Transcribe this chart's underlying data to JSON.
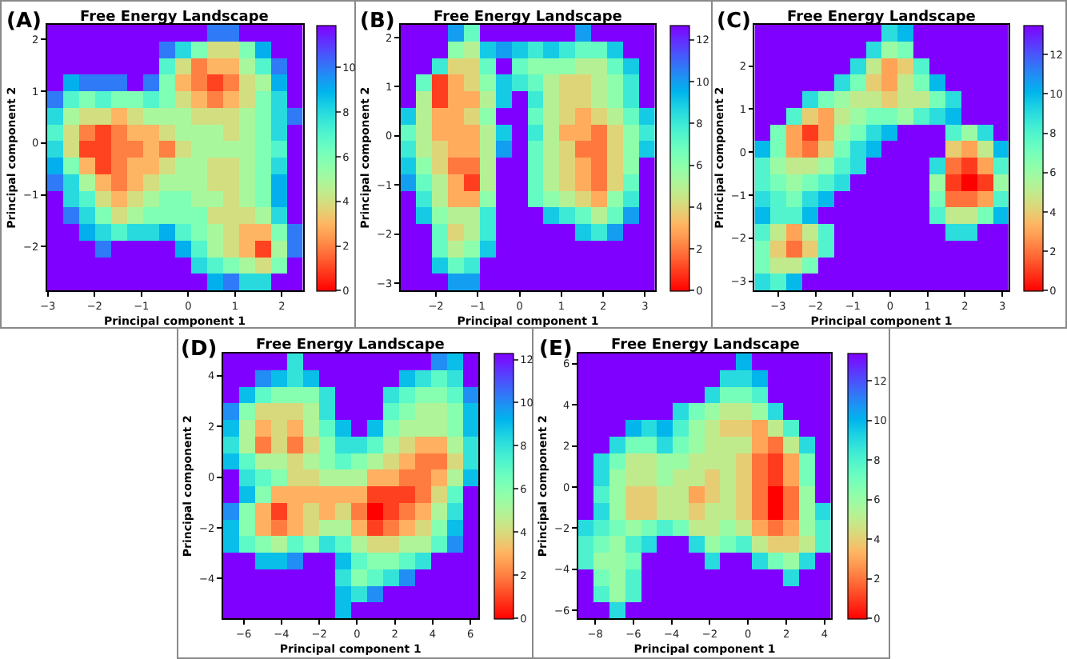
{
  "chart_data": [
    {
      "type": "heatmap",
      "title": "Free Energy Landscape",
      "xlabel": "Principal component 1",
      "ylabel": "Principal component 2",
      "annotations": [
        "(A)"
      ],
      "xlim": [
        -3.02,
        2.45
      ],
      "ylim": [
        -2.85,
        2.28
      ],
      "xticks": [
        -3,
        -2,
        -1,
        0,
        1,
        2
      ],
      "yticks": [
        -2,
        -1,
        0,
        1,
        2
      ],
      "clim": [
        0,
        11.9
      ],
      "cticks": [
        0,
        2,
        4,
        6,
        8,
        10
      ],
      "cells": [
        [
          11.9,
          11.9,
          11.9,
          11.9,
          11.9,
          11.9,
          11.9,
          11.9,
          11.9,
          11.9,
          10,
          10,
          11.9,
          11.9,
          11.9,
          11.9
        ],
        [
          11.9,
          11.9,
          11.9,
          11.9,
          11.9,
          11.9,
          11.9,
          10,
          8,
          6,
          4,
          4,
          6,
          9,
          11.9,
          11.9
        ],
        [
          11.9,
          11.9,
          11.9,
          11.9,
          11.9,
          11.9,
          11.9,
          7,
          4,
          2,
          3,
          3,
          5,
          7,
          10,
          11.9
        ],
        [
          11.9,
          9,
          10,
          10,
          10,
          11.9,
          10,
          6,
          3,
          2,
          1,
          2,
          4,
          5,
          9,
          11.9
        ],
        [
          10,
          7,
          6,
          7,
          6,
          6,
          7,
          6,
          4,
          3,
          2,
          3,
          4,
          6,
          8,
          11.9
        ],
        [
          8,
          5,
          4,
          4,
          3,
          4,
          5,
          5,
          5,
          4,
          4,
          4,
          5,
          6,
          8,
          10
        ],
        [
          7,
          4,
          2,
          1,
          2,
          3,
          3,
          4,
          5,
          5,
          5,
          4,
          5,
          6,
          8,
          11.9
        ],
        [
          8,
          4,
          1,
          1,
          2,
          2,
          3,
          2,
          4,
          5,
          5,
          5,
          5,
          6,
          7,
          11.9
        ],
        [
          9,
          6,
          3,
          1,
          2,
          3,
          3,
          4,
          5,
          5,
          4,
          4,
          5,
          6,
          8,
          11.9
        ],
        [
          10,
          8,
          5,
          3,
          2,
          3,
          4,
          5,
          5,
          5,
          4,
          4,
          5,
          6,
          9,
          11.9
        ],
        [
          11.9,
          8,
          7,
          4,
          3,
          4,
          5,
          6,
          6,
          5,
          5,
          4,
          5,
          6,
          9,
          11.9
        ],
        [
          11.9,
          10,
          8,
          6,
          4,
          5,
          6,
          6,
          6,
          6,
          4,
          4,
          4,
          5,
          8,
          11.9
        ],
        [
          11.9,
          11.9,
          9,
          8,
          7,
          8,
          8,
          9,
          7,
          6,
          5,
          4,
          3,
          3,
          6,
          10
        ],
        [
          11.9,
          11.9,
          11.9,
          10,
          11.9,
          11.9,
          11.9,
          11.9,
          9,
          7,
          5,
          4,
          3,
          1,
          5,
          10
        ],
        [
          11.9,
          11.9,
          11.9,
          11.9,
          11.9,
          11.9,
          11.9,
          11.9,
          11.9,
          8,
          7,
          6,
          5,
          4,
          6,
          11.9
        ],
        [
          11.9,
          11.9,
          11.9,
          11.9,
          11.9,
          11.9,
          11.9,
          11.9,
          11.9,
          11.9,
          9,
          10,
          8,
          8,
          11.9,
          11.9
        ]
      ]
    },
    {
      "type": "heatmap",
      "title": "Free Energy Landscape",
      "xlabel": "Principal component 1",
      "ylabel": "Principal component 2",
      "annotations": [
        "(B)"
      ],
      "xlim": [
        -2.85,
        3.25
      ],
      "ylim": [
        -3.15,
        2.26
      ],
      "xticks": [
        -2,
        -1,
        0,
        1,
        2,
        3
      ],
      "yticks": [
        -3,
        -2,
        -1,
        0,
        1,
        2
      ],
      "clim": [
        0,
        12.7
      ],
      "cticks": [
        0,
        2,
        4,
        6,
        8,
        10,
        12
      ],
      "cells": [
        [
          12.7,
          12.7,
          12.7,
          10,
          7,
          12.7,
          12.7,
          12.7,
          12.7,
          12.7,
          12.7,
          10,
          12.7,
          12.7,
          12.7,
          12.7
        ],
        [
          12.7,
          12.7,
          12.7,
          6,
          5,
          9,
          10,
          9,
          8,
          9,
          8,
          7,
          7,
          9,
          12.7,
          12.7
        ],
        [
          12.7,
          12.7,
          8,
          4,
          4,
          7,
          12.7,
          7,
          6,
          6,
          6,
          5,
          5,
          7,
          9,
          12.7
        ],
        [
          12.7,
          7,
          1,
          3,
          4,
          6,
          9,
          8,
          7,
          5,
          4,
          4,
          5,
          6,
          8,
          12.7
        ],
        [
          12.7,
          5,
          1,
          3,
          3,
          5,
          9,
          12.7,
          8,
          5,
          4,
          4,
          5,
          6,
          8,
          12.7
        ],
        [
          9,
          5,
          3,
          3,
          4,
          6,
          12.7,
          12.7,
          7,
          5,
          4,
          3,
          4,
          5,
          7,
          9
        ],
        [
          7,
          5,
          3,
          3,
          3,
          5,
          9,
          12.7,
          8,
          5,
          3,
          3,
          2,
          4,
          6,
          8
        ],
        [
          8,
          5,
          4,
          3,
          3,
          5,
          10,
          12.7,
          7,
          5,
          4,
          2,
          2,
          4,
          6,
          9
        ],
        [
          9,
          6,
          4,
          2,
          2,
          5,
          12.7,
          12.7,
          7,
          5,
          4,
          3,
          2,
          4,
          6,
          12.7
        ],
        [
          10,
          7,
          5,
          3,
          1,
          5,
          12.7,
          12.7,
          7,
          5,
          4,
          3,
          2,
          4,
          7,
          12.7
        ],
        [
          12.7,
          8,
          5,
          3,
          3,
          6,
          12.7,
          12.7,
          7,
          6,
          5,
          4,
          3,
          6,
          8,
          12.7
        ],
        [
          12.7,
          9,
          6,
          5,
          5,
          8,
          12.7,
          12.7,
          12.7,
          9,
          8,
          7,
          5,
          7,
          10,
          12.7
        ],
        [
          12.7,
          12.7,
          7,
          4,
          5,
          8,
          12.7,
          12.7,
          12.7,
          12.7,
          12.7,
          9,
          8,
          10,
          12.7,
          12.7
        ],
        [
          12.7,
          12.7,
          7,
          5,
          6,
          9,
          12.7,
          12.7,
          12.7,
          12.7,
          12.7,
          12.7,
          12.7,
          12.7,
          12.7,
          12.7
        ],
        [
          12.7,
          12.7,
          9,
          7,
          8,
          12.7,
          12.7,
          12.7,
          12.7,
          12.7,
          12.7,
          12.7,
          12.7,
          12.7,
          12.7,
          12.7
        ],
        [
          12.7,
          12.7,
          12.7,
          10,
          10,
          12.7,
          12.7,
          12.7,
          12.7,
          12.7,
          12.7,
          12.7,
          12.7,
          12.7,
          12.7,
          12.7
        ]
      ]
    },
    {
      "type": "heatmap",
      "title": "Free Energy Landscape",
      "xlabel": "Principal component 1",
      "ylabel": "Principal component 2",
      "annotations": [
        "(C)"
      ],
      "xlim": [
        -3.63,
        3.16
      ],
      "ylim": [
        -3.22,
        2.96
      ],
      "xticks": [
        -3,
        -2,
        -1,
        0,
        1,
        2,
        3
      ],
      "yticks": [
        -3,
        -2,
        -1,
        0,
        1,
        2
      ],
      "clim": [
        0,
        13.5
      ],
      "cticks": [
        0,
        2,
        4,
        6,
        8,
        10,
        12
      ],
      "cells": [
        [
          13.5,
          13.5,
          13.5,
          13.5,
          13.5,
          13.5,
          13.5,
          13.5,
          9,
          10,
          13.5,
          13.5,
          13.5,
          13.5,
          13.5,
          13.5
        ],
        [
          13.5,
          13.5,
          13.5,
          13.5,
          13.5,
          13.5,
          13.5,
          9,
          6,
          7,
          13.5,
          13.5,
          13.5,
          13.5,
          13.5,
          13.5
        ],
        [
          13.5,
          13.5,
          13.5,
          13.5,
          13.5,
          13.5,
          9,
          5,
          3,
          4,
          8,
          13.5,
          13.5,
          13.5,
          13.5,
          13.5
        ],
        [
          13.5,
          13.5,
          13.5,
          13.5,
          13.5,
          9,
          7,
          4,
          3,
          5,
          7,
          10,
          13.5,
          13.5,
          13.5,
          13.5
        ],
        [
          13.5,
          13.5,
          13.5,
          9,
          7,
          6,
          5,
          5,
          4,
          5,
          5,
          7,
          9,
          13.5,
          13.5,
          13.5
        ],
        [
          13.5,
          13.5,
          8,
          4,
          3,
          5,
          6,
          7,
          7,
          6,
          8,
          9,
          10,
          13.5,
          13.5,
          13.5
        ],
        [
          13.5,
          7,
          3,
          1,
          3,
          6,
          7,
          9,
          10,
          13.5,
          13.5,
          13.5,
          8,
          6,
          9,
          13.5
        ],
        [
          10,
          7,
          3,
          2,
          4,
          7,
          9,
          10,
          13.5,
          13.5,
          13.5,
          13.5,
          4,
          3,
          5,
          10
        ],
        [
          8,
          6,
          5,
          5,
          6,
          8,
          9,
          13.5,
          13.5,
          13.5,
          13.5,
          9,
          2,
          1,
          3,
          8
        ],
        [
          8,
          7,
          6,
          7,
          8,
          9,
          13.5,
          13.5,
          13.5,
          13.5,
          13.5,
          6,
          1,
          0,
          1,
          6
        ],
        [
          9,
          8,
          7,
          9,
          10,
          13.5,
          13.5,
          13.5,
          13.5,
          13.5,
          13.5,
          7,
          2,
          2,
          3,
          8
        ],
        [
          10,
          8,
          8,
          10,
          13.5,
          13.5,
          13.5,
          13.5,
          13.5,
          13.5,
          13.5,
          8,
          5,
          5,
          7,
          10
        ],
        [
          8,
          5,
          3,
          5,
          8,
          13.5,
          13.5,
          13.5,
          13.5,
          13.5,
          13.5,
          13.5,
          9,
          9,
          13.5,
          13.5
        ],
        [
          7,
          4,
          2,
          4,
          8,
          13.5,
          13.5,
          13.5,
          13.5,
          13.5,
          13.5,
          13.5,
          13.5,
          13.5,
          13.5,
          13.5
        ],
        [
          7,
          5,
          5,
          7,
          13.5,
          13.5,
          13.5,
          13.5,
          13.5,
          13.5,
          13.5,
          13.5,
          13.5,
          13.5,
          13.5,
          13.5
        ],
        [
          9,
          8,
          10,
          13.5,
          13.5,
          13.5,
          13.5,
          13.5,
          13.5,
          13.5,
          13.5,
          13.5,
          13.5,
          13.5,
          13.5,
          13.5
        ]
      ]
    },
    {
      "type": "heatmap",
      "title": "Free Energy Landscape",
      "xlabel": "Principal component 1",
      "ylabel": "Principal component 2",
      "annotations": [
        "(D)"
      ],
      "xlim": [
        -7.1,
        6.42
      ],
      "ylim": [
        -5.58,
        4.88
      ],
      "xticks": [
        -6,
        -4,
        -2,
        0,
        2,
        4,
        6
      ],
      "yticks": [
        -4,
        -2,
        0,
        2,
        4
      ],
      "clim": [
        0,
        12.3
      ],
      "cticks": [
        0,
        2,
        4,
        6,
        8,
        10,
        12
      ],
      "cells": [
        [
          12.3,
          12.3,
          12.3,
          12.3,
          8,
          12.3,
          12.3,
          12.3,
          12.3,
          12.3,
          12.3,
          12.3,
          12.3,
          10,
          9,
          12.3
        ],
        [
          12.3,
          12.3,
          10,
          9,
          8,
          9,
          12.3,
          12.3,
          12.3,
          12.3,
          12.3,
          9,
          8,
          7,
          8,
          12.3
        ],
        [
          12.3,
          9,
          7,
          6,
          6,
          6,
          8,
          12.3,
          12.3,
          12.3,
          8,
          7,
          6,
          6,
          7,
          10
        ],
        [
          10,
          6,
          4,
          4,
          4,
          5,
          8,
          12.3,
          12.3,
          12.3,
          7,
          6,
          5,
          5,
          6,
          9
        ],
        [
          9,
          5,
          3,
          4,
          3,
          5,
          7,
          9,
          12.3,
          9,
          6,
          5,
          5,
          5,
          6,
          9
        ],
        [
          8,
          5,
          2,
          4,
          2,
          4,
          6,
          8,
          8,
          7,
          5,
          4,
          3,
          3,
          5,
          8
        ],
        [
          9,
          7,
          5,
          5,
          4,
          5,
          6,
          7,
          6,
          5,
          4,
          3,
          2,
          2,
          4,
          8
        ],
        [
          12.3,
          8,
          7,
          6,
          4,
          4,
          5,
          5,
          5,
          3,
          3,
          2,
          2,
          3,
          5,
          9
        ],
        [
          12.3,
          9,
          6,
          3,
          3,
          3,
          3,
          3,
          3,
          1,
          1,
          1,
          2,
          4,
          7,
          12.3
        ],
        [
          10,
          6,
          3,
          1,
          3,
          4,
          3,
          4,
          2,
          0,
          1,
          2,
          3,
          5,
          8,
          12.3
        ],
        [
          9,
          6,
          3,
          2,
          3,
          4,
          5,
          5,
          3,
          1,
          2,
          3,
          4,
          6,
          9,
          12.3
        ],
        [
          9,
          7,
          6,
          5,
          7,
          6,
          8,
          7,
          5,
          4,
          4,
          5,
          5,
          7,
          10,
          12.3
        ],
        [
          12.3,
          12.3,
          9,
          9,
          10,
          12.3,
          12.3,
          9,
          7,
          6,
          6,
          7,
          8,
          12.3,
          12.3,
          12.3
        ],
        [
          12.3,
          12.3,
          12.3,
          12.3,
          12.3,
          12.3,
          12.3,
          8,
          6,
          7,
          8,
          10,
          12.3,
          12.3,
          12.3,
          12.3
        ],
        [
          12.3,
          12.3,
          12.3,
          12.3,
          12.3,
          12.3,
          12.3,
          9,
          8,
          10,
          12.3,
          12.3,
          12.3,
          12.3,
          12.3,
          12.3
        ],
        [
          12.3,
          12.3,
          12.3,
          12.3,
          12.3,
          12.3,
          12.3,
          9,
          12.3,
          12.3,
          12.3,
          12.3,
          12.3,
          12.3,
          12.3,
          12.3
        ]
      ]
    },
    {
      "type": "heatmap",
      "title": "Free Energy Landscape",
      "xlabel": "Principal component 1",
      "ylabel": "Principal component 2",
      "annotations": [
        "(E)"
      ],
      "xlim": [
        -8.9,
        4.36
      ],
      "ylim": [
        -6.4,
        6.5
      ],
      "xticks": [
        -8,
        -6,
        -4,
        -2,
        0,
        2,
        4
      ],
      "yticks": [
        -6,
        -4,
        -2,
        0,
        2,
        4,
        6
      ],
      "clim": [
        0,
        13.4
      ],
      "cticks": [
        0,
        2,
        4,
        6,
        8,
        10,
        12
      ],
      "cells": [
        [
          13.4,
          13.4,
          13.4,
          13.4,
          13.4,
          13.4,
          13.4,
          13.4,
          13.4,
          13.4,
          10,
          13.4,
          13.4,
          13.4,
          13.4,
          13.4
        ],
        [
          13.4,
          13.4,
          13.4,
          13.4,
          13.4,
          13.4,
          13.4,
          13.4,
          13.4,
          9,
          9,
          10,
          13.4,
          13.4,
          13.4,
          13.4
        ],
        [
          13.4,
          13.4,
          13.4,
          13.4,
          13.4,
          13.4,
          13.4,
          13.4,
          9,
          7,
          7,
          8,
          13.4,
          13.4,
          13.4,
          13.4
        ],
        [
          13.4,
          13.4,
          13.4,
          13.4,
          13.4,
          13.4,
          9,
          7,
          6,
          5,
          5,
          6,
          9,
          13.4,
          13.4,
          13.4
        ],
        [
          13.4,
          13.4,
          13.4,
          10,
          9,
          10,
          8,
          6,
          5,
          4,
          4,
          3,
          5,
          8,
          13.4,
          13.4
        ],
        [
          13.4,
          13.4,
          9,
          7,
          7,
          9,
          7,
          6,
          5,
          5,
          5,
          3,
          2,
          5,
          9,
          13.4
        ],
        [
          13.4,
          9,
          7,
          5,
          5,
          6,
          6,
          5,
          5,
          5,
          4,
          2,
          1,
          3,
          7,
          13.4
        ],
        [
          13.4,
          9,
          6,
          5,
          5,
          6,
          5,
          5,
          4,
          5,
          4,
          2,
          1,
          3,
          7,
          13.4
        ],
        [
          13.4,
          8,
          6,
          4,
          4,
          5,
          5,
          3,
          4,
          5,
          4,
          2,
          0,
          2,
          6,
          13.4
        ],
        [
          13.4,
          9,
          6,
          4,
          4,
          5,
          5,
          4,
          5,
          5,
          4,
          2,
          0,
          2,
          6,
          9
        ],
        [
          9,
          8,
          7,
          6,
          7,
          8,
          7,
          5,
          5,
          6,
          5,
          3,
          2,
          3,
          6,
          8
        ],
        [
          8,
          7,
          6,
          8,
          9,
          13.4,
          13.4,
          9,
          6,
          7,
          8,
          5,
          4,
          4,
          5,
          8
        ],
        [
          8,
          6,
          6,
          7,
          13.4,
          13.4,
          13.4,
          13.4,
          9,
          13.4,
          13.4,
          9,
          7,
          6,
          9,
          13.4
        ],
        [
          13.4,
          7,
          6,
          8,
          13.4,
          13.4,
          13.4,
          13.4,
          13.4,
          13.4,
          13.4,
          13.4,
          13.4,
          9,
          13.4,
          13.4
        ],
        [
          13.4,
          8,
          6,
          8,
          13.4,
          13.4,
          13.4,
          13.4,
          13.4,
          13.4,
          13.4,
          13.4,
          13.4,
          13.4,
          13.4,
          13.4
        ],
        [
          13.4,
          13.4,
          9,
          13.4,
          13.4,
          13.4,
          13.4,
          13.4,
          13.4,
          13.4,
          13.4,
          13.4,
          13.4,
          13.4,
          13.4,
          13.4
        ]
      ]
    }
  ]
}
